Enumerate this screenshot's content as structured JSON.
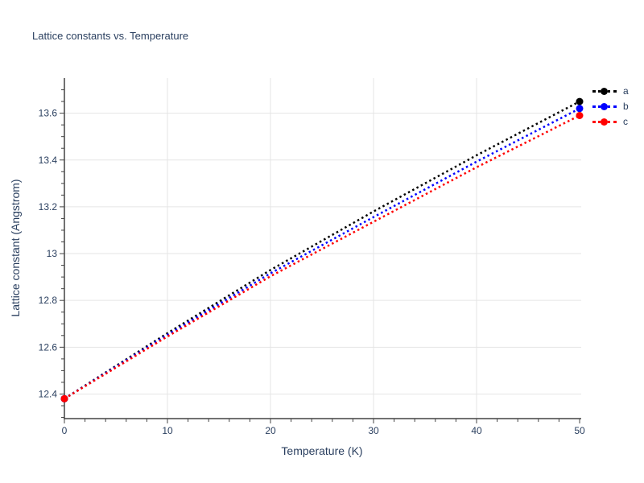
{
  "chart_data": {
    "type": "line",
    "title": "Lattice constants vs. Temperature",
    "xlabel": "Temperature (K)",
    "ylabel": "Lattice constant (Angstrom)",
    "x": [
      0,
      10,
      20,
      30,
      40,
      50
    ],
    "series": [
      {
        "name": "a",
        "color": "#000000",
        "values": [
          12.38,
          12.66,
          12.93,
          13.18,
          13.42,
          13.65
        ]
      },
      {
        "name": "b",
        "color": "#0000ff",
        "values": [
          12.38,
          12.653,
          12.916,
          13.156,
          13.393,
          13.62
        ]
      },
      {
        "name": "c",
        "color": "#ff0000",
        "values": [
          12.38,
          12.646,
          12.903,
          13.136,
          13.369,
          13.59
        ]
      }
    ],
    "xlim": [
      0,
      50
    ],
    "ylim": [
      12.295,
      13.75
    ],
    "x_tick_major": 10,
    "x_tick_minor": 2,
    "y_tick_major": 0.2,
    "y_tick_minor": 0.05,
    "x_tick_labels": [
      "0",
      "10",
      "20",
      "30",
      "40",
      "50"
    ],
    "y_tick_labels": [
      "12.4",
      "12.6",
      "12.8",
      "13",
      "13.2",
      "13.4",
      "13.6"
    ],
    "grid": "major-only",
    "line_dash": "dot",
    "markers": "endpoints-only",
    "legend_position": "top-right-outside",
    "colors": {
      "text": "#2a3f5f",
      "grid": "#e5e5e5",
      "axis": "#444444",
      "background": "#ffffff"
    }
  }
}
